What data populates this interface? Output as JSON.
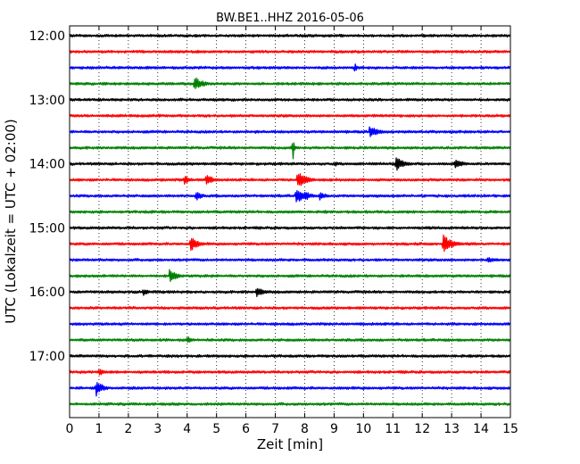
{
  "chart_data": {
    "type": "line",
    "title": "BW.BE1..HHZ 2016-05-06",
    "xlabel": "Zeit  [min]",
    "ylabel": "UTC (Lokalzeit = UTC + 02:00)",
    "xlim": [
      0,
      15
    ],
    "x_ticks": [
      "0",
      "1",
      "2",
      "3",
      "4",
      "5",
      "6",
      "7",
      "8",
      "9",
      "10",
      "11",
      "12",
      "13",
      "14",
      "15"
    ],
    "y_ticks": [
      "12:00",
      "13:00",
      "14:00",
      "15:00",
      "16:00",
      "17:00"
    ],
    "grid": "x-dotted",
    "colors": [
      "#000000",
      "#ff0000",
      "#0000ff",
      "#008000"
    ],
    "traces": [
      {
        "start": "12:00",
        "color": "#000000",
        "events": []
      },
      {
        "start": "12:15",
        "color": "#ff0000",
        "events": []
      },
      {
        "start": "12:30",
        "color": "#0000ff",
        "events": [
          {
            "t": 9.7,
            "amp": 1.3,
            "dur": 0.08
          }
        ]
      },
      {
        "start": "12:45",
        "color": "#008000",
        "events": [
          {
            "t": 4.25,
            "amp": 1.1,
            "dur": 0.5
          }
        ]
      },
      {
        "start": "13:00",
        "color": "#000000",
        "events": []
      },
      {
        "start": "13:15",
        "color": "#ff0000",
        "events": []
      },
      {
        "start": "13:30",
        "color": "#0000ff",
        "events": [
          {
            "t": 10.2,
            "amp": 0.9,
            "dur": 0.6
          },
          {
            "t": 6.3,
            "amp": 0.3,
            "dur": 0.15
          }
        ]
      },
      {
        "start": "13:45",
        "color": "#008000",
        "events": [
          {
            "t": 7.6,
            "amp": 2.2,
            "dur": 0.08
          }
        ]
      },
      {
        "start": "14:00",
        "color": "#000000",
        "events": [
          {
            "t": 11.1,
            "amp": 1.1,
            "dur": 0.5
          },
          {
            "t": 13.1,
            "amp": 0.8,
            "dur": 0.5
          },
          {
            "t": 9.05,
            "amp": 0.5,
            "dur": 0.1
          }
        ]
      },
      {
        "start": "14:15",
        "color": "#ff0000",
        "events": [
          {
            "t": 3.9,
            "amp": 0.7,
            "dur": 0.4
          },
          {
            "t": 4.65,
            "amp": 1.0,
            "dur": 0.35
          },
          {
            "t": 7.75,
            "amp": 1.4,
            "dur": 0.5
          },
          {
            "t": 3.1,
            "amp": 0.3,
            "dur": 0.3
          },
          {
            "t": 8.6,
            "amp": 0.3,
            "dur": 0.3
          }
        ]
      },
      {
        "start": "14:30",
        "color": "#0000ff",
        "events": [
          {
            "t": 4.3,
            "amp": 0.8,
            "dur": 0.35
          },
          {
            "t": 7.7,
            "amp": 1.2,
            "dur": 0.5
          },
          {
            "t": 8.0,
            "amp": 0.8,
            "dur": 0.4
          },
          {
            "t": 8.5,
            "amp": 0.7,
            "dur": 0.4
          }
        ]
      },
      {
        "start": "14:45",
        "color": "#008000",
        "events": [
          {
            "t": 2.8,
            "amp": 0.35,
            "dur": 0.1
          },
          {
            "t": 11.5,
            "amp": 0.3,
            "dur": 0.1
          }
        ]
      },
      {
        "start": "15:00",
        "color": "#000000",
        "events": [
          {
            "t": 9.8,
            "amp": 0.25,
            "dur": 0.1
          }
        ]
      },
      {
        "start": "15:15",
        "color": "#ff0000",
        "events": [
          {
            "t": 4.1,
            "amp": 1.2,
            "dur": 0.45
          },
          {
            "t": 12.7,
            "amp": 1.5,
            "dur": 0.55
          }
        ]
      },
      {
        "start": "15:30",
        "color": "#0000ff",
        "events": [
          {
            "t": 14.2,
            "amp": 0.45,
            "dur": 0.6
          },
          {
            "t": 6.2,
            "amp": 0.2,
            "dur": 0.2
          }
        ]
      },
      {
        "start": "15:45",
        "color": "#008000",
        "events": [
          {
            "t": 3.4,
            "amp": 1.2,
            "dur": 0.4
          },
          {
            "t": 4.8,
            "amp": 0.3,
            "dur": 0.15
          }
        ]
      },
      {
        "start": "16:00",
        "color": "#000000",
        "events": [
          {
            "t": 2.5,
            "amp": 0.6,
            "dur": 0.35
          },
          {
            "t": 6.35,
            "amp": 0.9,
            "dur": 0.4
          }
        ]
      },
      {
        "start": "16:15",
        "color": "#ff0000",
        "events": []
      },
      {
        "start": "16:30",
        "color": "#0000ff",
        "events": []
      },
      {
        "start": "16:45",
        "color": "#008000",
        "events": [
          {
            "t": 4.0,
            "amp": 0.6,
            "dur": 0.3
          }
        ]
      },
      {
        "start": "17:00",
        "color": "#000000",
        "events": []
      },
      {
        "start": "17:15",
        "color": "#ff0000",
        "events": [
          {
            "t": 1.0,
            "amp": 0.8,
            "dur": 0.25
          }
        ]
      },
      {
        "start": "17:30",
        "color": "#0000ff",
        "events": [
          {
            "t": 0.9,
            "amp": 1.3,
            "dur": 0.4
          }
        ]
      },
      {
        "start": "17:45",
        "color": "#008000",
        "events": []
      }
    ]
  }
}
